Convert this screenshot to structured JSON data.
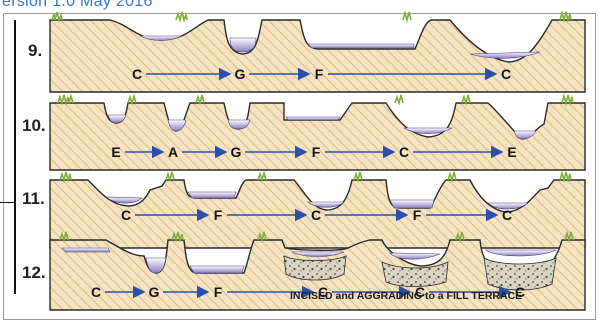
{
  "header": {
    "text": "ersion 1.0 May 2016"
  },
  "rows": [
    {
      "label": "9.",
      "sequence": [
        "C",
        "G",
        "F",
        "C"
      ]
    },
    {
      "label": "10.",
      "sequence": [
        "E",
        "A",
        "G",
        "F",
        "C",
        "E"
      ]
    },
    {
      "label": "11.",
      "sequence": [
        "C",
        "F",
        "C",
        "F",
        "C"
      ]
    },
    {
      "label": "12.",
      "sequence": [
        "C",
        "G",
        "F",
        "C",
        "C",
        "C"
      ],
      "caption": "INCISED and  AGGRADING to a FILL TERRACE"
    }
  ],
  "colors": {
    "ground": "#f4e5c2",
    "hatch": "#e6b88a",
    "outline": "#2a2a2a",
    "water_top": "#ffffff",
    "water_bottom": "#8b7bc0",
    "arrow": "#2b4fae",
    "grass": "#7fae3c",
    "fill_terrace": "#d9d4c2"
  }
}
